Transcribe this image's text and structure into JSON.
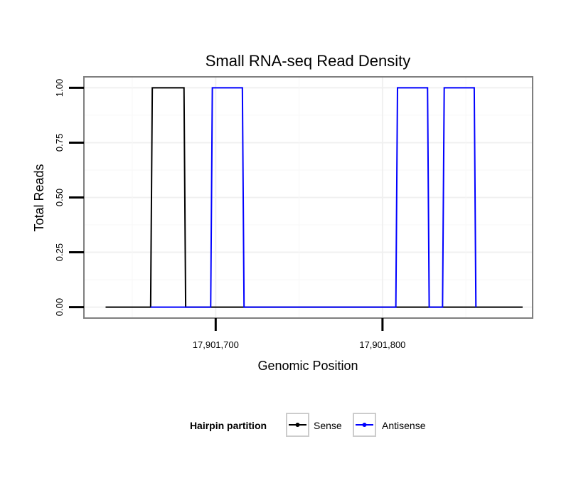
{
  "chart_data": {
    "type": "line",
    "title": "Small RNA-seq Read Density",
    "xlabel": "Genomic Position",
    "ylabel": "Total Reads",
    "xlim": [
      17901621,
      17901890
    ],
    "ylim": [
      -0.05,
      1.05
    ],
    "x_ticks": [
      {
        "value": 17901700,
        "label": "17,901,700"
      },
      {
        "value": 17901800,
        "label": "17,901,800"
      }
    ],
    "y_ticks": [
      {
        "value": 0.0,
        "label": "0.00"
      },
      {
        "value": 0.25,
        "label": "0.25"
      },
      {
        "value": 0.5,
        "label": "0.50"
      },
      {
        "value": 0.75,
        "label": "0.75"
      },
      {
        "value": 1.0,
        "label": "1.00"
      }
    ],
    "grid": true,
    "legend": {
      "title": "Hairpin partition",
      "position": "bottom"
    },
    "series": [
      {
        "name": "Sense",
        "color": "#000000",
        "x": [
          17901634,
          17901661,
          17901662,
          17901681,
          17901682,
          17901884
        ],
        "y": [
          0,
          0,
          1,
          1,
          0,
          0
        ]
      },
      {
        "name": "Antisense",
        "color": "#0000ff",
        "x": [
          17901661,
          17901697,
          17901698,
          17901716,
          17901717,
          17901808,
          17901809,
          17901827,
          17901828,
          17901836,
          17901837,
          17901855,
          17901856
        ],
        "y": [
          0,
          0,
          1,
          1,
          0,
          0,
          1,
          1,
          0,
          0,
          1,
          1,
          0
        ]
      }
    ]
  }
}
